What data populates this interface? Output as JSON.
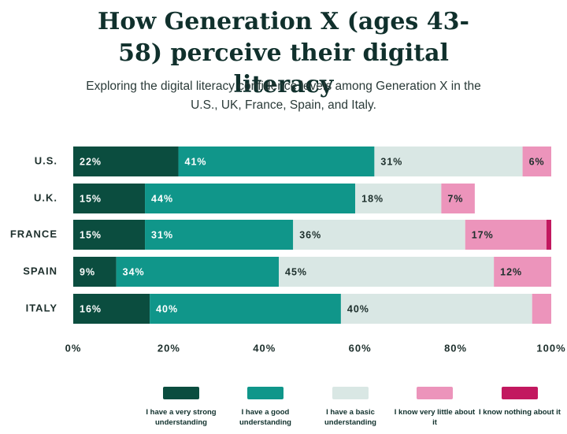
{
  "chart_data": {
    "type": "stacked-bar-horizontal",
    "title": "How Generation X (ages 43-58) perceive their digital literacy",
    "subtitle": "Exploring the digital literacy confidence levels among Generation X in the U.S., UK, France, Spain, and Italy.",
    "categories": [
      "U.S.",
      "U.K.",
      "FRANCE",
      "SPAIN",
      "ITALY"
    ],
    "series": [
      {
        "name": "I have a very strong understanding",
        "color": "#0b4d3f",
        "values": [
          22,
          15,
          15,
          9,
          16
        ],
        "value_labels": [
          "22%",
          "15%",
          "15%",
          "9%",
          "16%"
        ]
      },
      {
        "name": "I have a good understanding",
        "color": "#10968a",
        "values": [
          41,
          44,
          31,
          34,
          40
        ],
        "value_labels": [
          "41%",
          "44%",
          "31%",
          "34%",
          "40%"
        ]
      },
      {
        "name": "I have a basic understanding",
        "color": "#d9e7e4",
        "values": [
          31,
          18,
          36,
          45,
          40
        ],
        "value_labels": [
          "31%",
          "18%",
          "36%",
          "45%",
          "40%"
        ]
      },
      {
        "name": "I know very little about it",
        "color": "#ec94bb",
        "values": [
          6,
          7,
          17,
          12,
          4
        ],
        "value_labels": [
          "6%",
          "7%",
          "17%",
          "12%",
          null
        ]
      },
      {
        "name": "I know nothing about it",
        "color": "#c2185f",
        "values": [
          0,
          0,
          1,
          0,
          0
        ],
        "value_labels": [
          null,
          null,
          null,
          null,
          null
        ]
      }
    ],
    "xlim": [
      0,
      100
    ],
    "xticks": [
      {
        "value": 0,
        "label": "0%"
      },
      {
        "value": 20,
        "label": "20%"
      },
      {
        "value": 40,
        "label": "40%"
      },
      {
        "value": 60,
        "label": "60%"
      },
      {
        "value": 80,
        "label": "80%"
      },
      {
        "value": 100,
        "label": "100%"
      }
    ]
  }
}
